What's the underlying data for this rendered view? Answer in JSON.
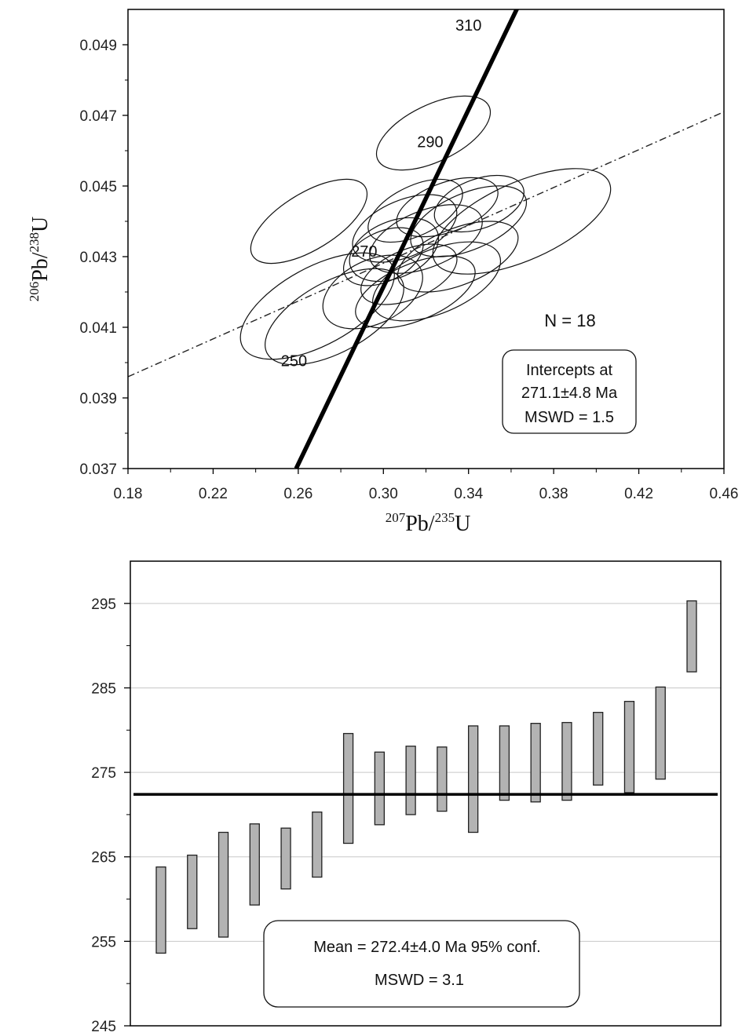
{
  "chart_data": [
    {
      "type": "scatter",
      "subtype": "concordia-diagram",
      "xlabel": {
        "sup1": "207",
        "base1": "Pb/",
        "sup2": "235",
        "base2": "U"
      },
      "ylabel": {
        "sup1": "206",
        "base1": "Pb/",
        "sup2": "238",
        "base2": "U"
      },
      "xlim": [
        0.18,
        0.46
      ],
      "ylim": [
        0.037,
        0.05
      ],
      "xticks": [
        "0.18",
        "0.22",
        "0.26",
        "0.30",
        "0.34",
        "0.38",
        "0.42",
        "0.46"
      ],
      "yticks": [
        "0.037",
        "0.039",
        "0.041",
        "0.043",
        "0.045",
        "0.047",
        "0.049"
      ],
      "concordia": {
        "points": [
          [
            0.259,
            0.037
          ],
          [
            0.365,
            0.0503
          ]
        ],
        "age_labels": [
          {
            "text": "310",
            "x": 0.34,
            "y": 0.0494
          },
          {
            "text": "290",
            "x": 0.322,
            "y": 0.0461
          },
          {
            "text": "250",
            "x": 0.258,
            "y": 0.0399
          },
          {
            "text": "270",
            "x": 0.291,
            "y": 0.043
          }
        ]
      },
      "discordia": {
        "points": [
          [
            0.18,
            0.0396
          ],
          [
            0.46,
            0.0471
          ]
        ]
      },
      "ellipses": [
        {
          "cx": 0.3235,
          "cy": 0.0465,
          "rx": 0.029,
          "ry": 0.0008,
          "angle": 0.45
        },
        {
          "cx": 0.265,
          "cy": 0.044,
          "rx": 0.031,
          "ry": 0.0008,
          "angle": 0.55
        },
        {
          "cx": 0.269,
          "cy": 0.0416,
          "rx": 0.04,
          "ry": 0.0011,
          "angle": 0.5
        },
        {
          "cx": 0.277,
          "cy": 0.0413,
          "rx": 0.036,
          "ry": 0.001,
          "angle": 0.5
        },
        {
          "cx": 0.315,
          "cy": 0.042,
          "rx": 0.03,
          "ry": 0.0008,
          "angle": 0.4
        },
        {
          "cx": 0.325,
          "cy": 0.0423,
          "rx": 0.032,
          "ry": 0.0009,
          "angle": 0.4
        },
        {
          "cx": 0.365,
          "cy": 0.044,
          "rx": 0.045,
          "ry": 0.0011,
          "angle": 0.42
        },
        {
          "cx": 0.34,
          "cy": 0.044,
          "rx": 0.029,
          "ry": 0.0008,
          "angle": 0.4
        },
        {
          "cx": 0.31,
          "cy": 0.0438,
          "rx": 0.026,
          "ry": 0.0008,
          "angle": 0.4
        },
        {
          "cx": 0.315,
          "cy": 0.0443,
          "rx": 0.024,
          "ry": 0.0007,
          "angle": 0.45
        },
        {
          "cx": 0.32,
          "cy": 0.0435,
          "rx": 0.028,
          "ry": 0.0008,
          "angle": 0.38
        },
        {
          "cx": 0.305,
          "cy": 0.0432,
          "rx": 0.022,
          "ry": 0.0008,
          "angle": 0.4
        },
        {
          "cx": 0.33,
          "cy": 0.0444,
          "rx": 0.025,
          "ry": 0.0007,
          "angle": 0.35
        },
        {
          "cx": 0.3,
          "cy": 0.043,
          "rx": 0.02,
          "ry": 0.0007,
          "angle": 0.45
        },
        {
          "cx": 0.312,
          "cy": 0.0425,
          "rx": 0.024,
          "ry": 0.0007,
          "angle": 0.4
        },
        {
          "cx": 0.335,
          "cy": 0.043,
          "rx": 0.03,
          "ry": 0.0008,
          "angle": 0.38
        },
        {
          "cx": 0.345,
          "cy": 0.0445,
          "rx": 0.022,
          "ry": 0.0007,
          "angle": 0.35
        },
        {
          "cx": 0.295,
          "cy": 0.042,
          "rx": 0.025,
          "ry": 0.0009,
          "angle": 0.45
        }
      ],
      "annotations": {
        "n_label": "N = 18",
        "box_lines": [
          "Intercepts at",
          "271.1±4.8 Ma",
          "MSWD = 1.5"
        ]
      }
    },
    {
      "type": "bar",
      "subtype": "weighted-mean-error-bars",
      "ylim": [
        245,
        300
      ],
      "yticks": [
        "245",
        "255",
        "265",
        "275",
        "285",
        "295"
      ],
      "gridlines": [
        255,
        265,
        275,
        285,
        295
      ],
      "grid": true,
      "mean": 272.4,
      "bars": [
        {
          "low": 253.6,
          "high": 263.8
        },
        {
          "low": 256.5,
          "high": 265.2
        },
        {
          "low": 255.5,
          "high": 267.9
        },
        {
          "low": 259.3,
          "high": 268.9
        },
        {
          "low": 261.2,
          "high": 268.4
        },
        {
          "low": 262.6,
          "high": 270.3
        },
        {
          "low": 266.6,
          "high": 279.6
        },
        {
          "low": 268.8,
          "high": 277.4
        },
        {
          "low": 270.0,
          "high": 278.1
        },
        {
          "low": 270.4,
          "high": 278.0
        },
        {
          "low": 267.9,
          "high": 280.5
        },
        {
          "low": 271.7,
          "high": 280.5
        },
        {
          "low": 271.5,
          "high": 280.8
        },
        {
          "low": 271.7,
          "high": 280.9
        },
        {
          "low": 273.5,
          "high": 282.1
        },
        {
          "low": 272.6,
          "high": 283.4
        },
        {
          "low": 274.2,
          "high": 285.1
        },
        {
          "low": 286.9,
          "high": 295.3
        }
      ],
      "annotations": {
        "box_lines": [
          "Mean = 272.4±4.0 Ma  95% conf.",
          "MSWD = 3.1"
        ]
      },
      "colors": {
        "bar_fill": "#b3b3b3",
        "bar_stroke": "#222222"
      }
    }
  ]
}
